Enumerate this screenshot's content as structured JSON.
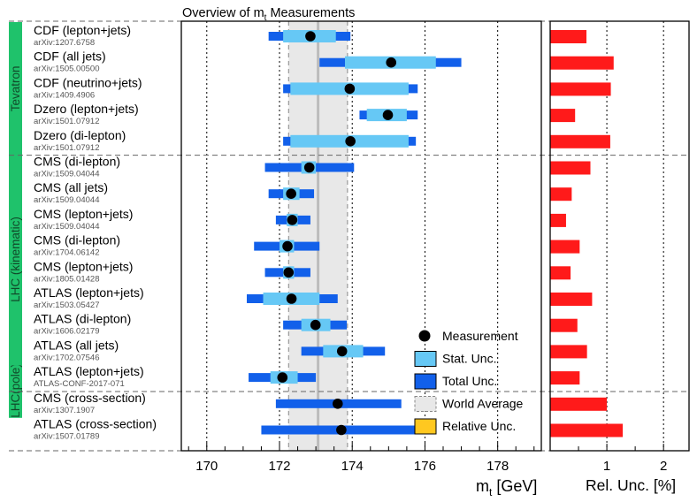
{
  "chart_data": {
    "type": "errorbar",
    "title": "Overview of m_t Measurements",
    "title_main": "Overview of m",
    "title_sub": "t",
    "title_rest": " Measurements",
    "xlabel_main": "m",
    "xlabel_sub": "t",
    "xlabel_rest": " [GeV]",
    "xlim": [
      169.3,
      179.2
    ],
    "xticks": [
      "170",
      "172",
      "174",
      "176",
      "178"
    ],
    "rel_xlim": [
      0,
      2.45
    ],
    "rel_xticks": [
      "1",
      "2"
    ],
    "rel_xlabel": "Rel. Unc. [%]",
    "world_average": {
      "center": 173.06,
      "low": 172.25,
      "high": 173.87
    },
    "groups": [
      {
        "label": "Tevatron",
        "color": "#1fc26b",
        "rows": [
          0,
          4
        ]
      },
      {
        "label": "LHC(pole)",
        "color": "#1fc26b",
        "rows": [
          13,
          14
        ]
      },
      {
        "label": "LHC (kinematic)",
        "color": "#1fc26b",
        "rows": [
          5,
          12
        ]
      }
    ],
    "measurements": [
      {
        "name": "CDF (lepton+jets)",
        "ref": "arXiv:1207.6758",
        "value": 172.85,
        "stat": [
          172.1,
          173.55
        ],
        "total": [
          171.7,
          173.95
        ],
        "rel": 0.64
      },
      {
        "name": "CDF (all jets)",
        "ref": "arXiv:1505.00500",
        "value": 175.07,
        "stat": [
          173.8,
          176.3
        ],
        "total": [
          173.1,
          177.0
        ],
        "rel": 1.12
      },
      {
        "name": "CDF (neutrino+jets)",
        "ref": "arXiv:1409.4906",
        "value": 173.93,
        "stat": [
          172.3,
          175.55
        ],
        "total": [
          172.1,
          175.8
        ],
        "rel": 1.07
      },
      {
        "name": "Dzero (lepton+jets)",
        "ref": "arXiv:1501.07912",
        "value": 174.98,
        "stat": [
          174.4,
          175.5
        ],
        "total": [
          174.2,
          175.8
        ],
        "rel": 0.44
      },
      {
        "name": "Dzero (di-lepton)",
        "ref": "arXiv:1501.07912",
        "value": 173.95,
        "stat": [
          172.3,
          175.55
        ],
        "total": [
          172.1,
          175.75
        ],
        "rel": 1.06
      },
      {
        "name": "CMS (di-lepton)",
        "ref": "arXiv:1509.04044",
        "value": 172.82,
        "stat": [
          172.6,
          173.0
        ],
        "total": [
          171.6,
          174.05
        ],
        "rel": 0.71
      },
      {
        "name": "CMS (all jets)",
        "ref": "arXiv:1509.04044",
        "value": 172.32,
        "stat": [
          172.1,
          172.55
        ],
        "total": [
          171.7,
          172.95
        ],
        "rel": 0.38
      },
      {
        "name": "CMS (lepton+jets)",
        "ref": "arXiv:1509.04044",
        "value": 172.35,
        "stat": [
          172.2,
          172.5
        ],
        "total": [
          171.9,
          172.85
        ],
        "rel": 0.28
      },
      {
        "name": "CMS (di-lepton)",
        "ref": "arXiv:1704.06142",
        "value": 172.22,
        "stat": [
          172.0,
          172.4
        ],
        "total": [
          171.3,
          173.1
        ],
        "rel": 0.52
      },
      {
        "name": "CMS (lepton+jets)",
        "ref": "arXiv:1805.01428",
        "value": 172.25,
        "stat": [
          172.1,
          172.4
        ],
        "total": [
          171.6,
          172.85
        ],
        "rel": 0.36
      },
      {
        "name": "ATLAS (lepton+jets)",
        "ref": "arXiv:1503.05427",
        "value": 172.33,
        "stat": [
          171.55,
          173.1
        ],
        "total": [
          171.1,
          173.6
        ],
        "rel": 0.74
      },
      {
        "name": "ATLAS (di-lepton)",
        "ref": "arXiv:1606.02179",
        "value": 172.99,
        "stat": [
          172.6,
          173.4
        ],
        "total": [
          172.1,
          173.85
        ],
        "rel": 0.48
      },
      {
        "name": "ATLAS (all jets)",
        "ref": "arXiv:1702.07546",
        "value": 173.72,
        "stat": [
          173.2,
          174.3
        ],
        "total": [
          172.6,
          174.9
        ],
        "rel": 0.65
      },
      {
        "name": "ATLAS (lepton+jets)",
        "ref": "ATLAS-CONF-2017-071",
        "value": 172.08,
        "stat": [
          171.75,
          172.5
        ],
        "total": [
          171.15,
          173.0
        ],
        "rel": 0.52
      },
      {
        "name": "CMS (cross-section)",
        "ref": "arXiv:1307.1907",
        "value": 173.6,
        "stat": [
          173.6,
          173.6
        ],
        "total": [
          171.9,
          175.35
        ],
        "rel": 1.0
      },
      {
        "name": "ATLAS (cross-section)",
        "ref": "arXiv:1507.01789",
        "value": 173.7,
        "stat": [
          173.7,
          173.7
        ],
        "total": [
          171.5,
          175.95
        ],
        "rel": 1.28
      }
    ],
    "legend": {
      "placement": "bottom-right",
      "entries": [
        "Measurement",
        "Stat. Unc.",
        "Total Unc.",
        "World Average",
        "Relative Unc."
      ]
    },
    "colors": {
      "stat": "#66c8f5",
      "total": "#1260ea",
      "world_band": "#e8e8e8",
      "world_line": "#bcbcbc",
      "world_edge": "#888888",
      "relative_bar": "#ff1a1a",
      "legend_relative": "#ffc820",
      "marker": "#000000"
    }
  }
}
